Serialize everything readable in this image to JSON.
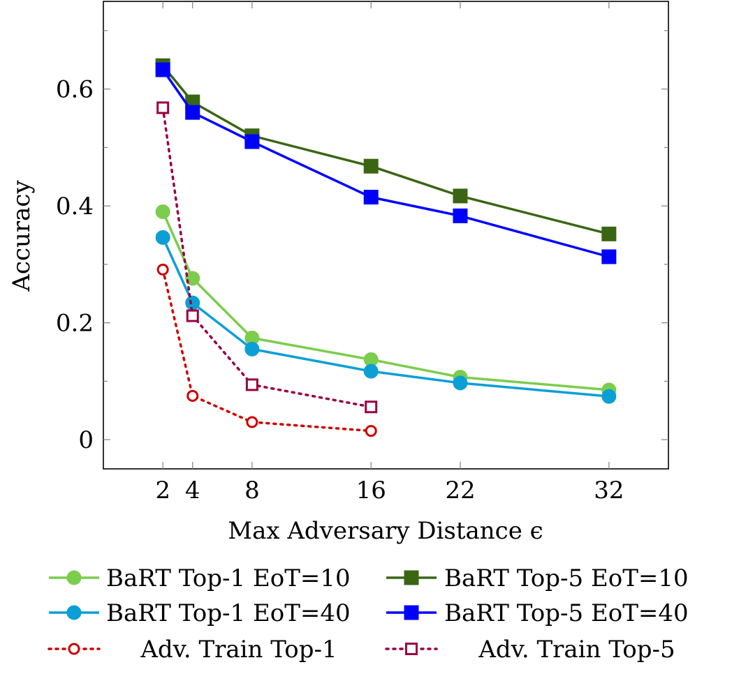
{
  "chart_data": {
    "type": "line",
    "title": "",
    "xlabel": "Max Adversary Distance ϵ",
    "ylabel": "Accuracy",
    "xlim": [
      -2,
      36
    ],
    "ylim": [
      -0.05,
      0.75
    ],
    "xticks": [
      2,
      4,
      8,
      16,
      22,
      32
    ],
    "xtick_labels": [
      "2",
      "4",
      "8",
      "16",
      "22",
      "32"
    ],
    "yticks": [
      0,
      0.2,
      0.4,
      0.6
    ],
    "ytick_labels": [
      "0",
      "0.2",
      "0.4",
      "0.6"
    ],
    "grid": false,
    "legend_position": "bottom",
    "series": [
      {
        "name": "BaRT Top-1 EoT=10",
        "color": "#7ccc4e",
        "marker": "circle",
        "filled": true,
        "dash": "solid",
        "x": [
          2,
          4,
          8,
          16,
          22,
          32
        ],
        "y": [
          0.39,
          0.276,
          0.174,
          0.137,
          0.107,
          0.085
        ]
      },
      {
        "name": "BaRT Top-5 EoT=10",
        "color": "#3a6614",
        "marker": "square",
        "filled": true,
        "dash": "solid",
        "x": [
          2,
          4,
          8,
          16,
          22,
          32
        ],
        "y": [
          0.64,
          0.578,
          0.52,
          0.468,
          0.417,
          0.352
        ]
      },
      {
        "name": "BaRT Top-1 EoT=40",
        "color": "#0b9fd6",
        "marker": "circle",
        "filled": true,
        "dash": "solid",
        "x": [
          2,
          4,
          8,
          16,
          22,
          32
        ],
        "y": [
          0.346,
          0.234,
          0.155,
          0.117,
          0.097,
          0.074
        ]
      },
      {
        "name": "BaRT Top-5 EoT=40",
        "color": "#0000ff",
        "marker": "square",
        "filled": true,
        "dash": "solid",
        "x": [
          2,
          4,
          8,
          16,
          22,
          32
        ],
        "y": [
          0.633,
          0.56,
          0.51,
          0.415,
          0.383,
          0.313
        ]
      },
      {
        "name": "Adv. Train Top-1",
        "color": "#cc0000",
        "marker": "circle",
        "filled": false,
        "dash": "dotted",
        "x": [
          2,
          4,
          8,
          16
        ],
        "y": [
          0.291,
          0.075,
          0.03,
          0.015
        ]
      },
      {
        "name": "Adv. Train Top-5",
        "color": "#990044",
        "marker": "square",
        "filled": false,
        "dash": "dotted",
        "x": [
          2,
          4,
          8,
          16
        ],
        "y": [
          0.568,
          0.212,
          0.094,
          0.056
        ]
      }
    ]
  }
}
